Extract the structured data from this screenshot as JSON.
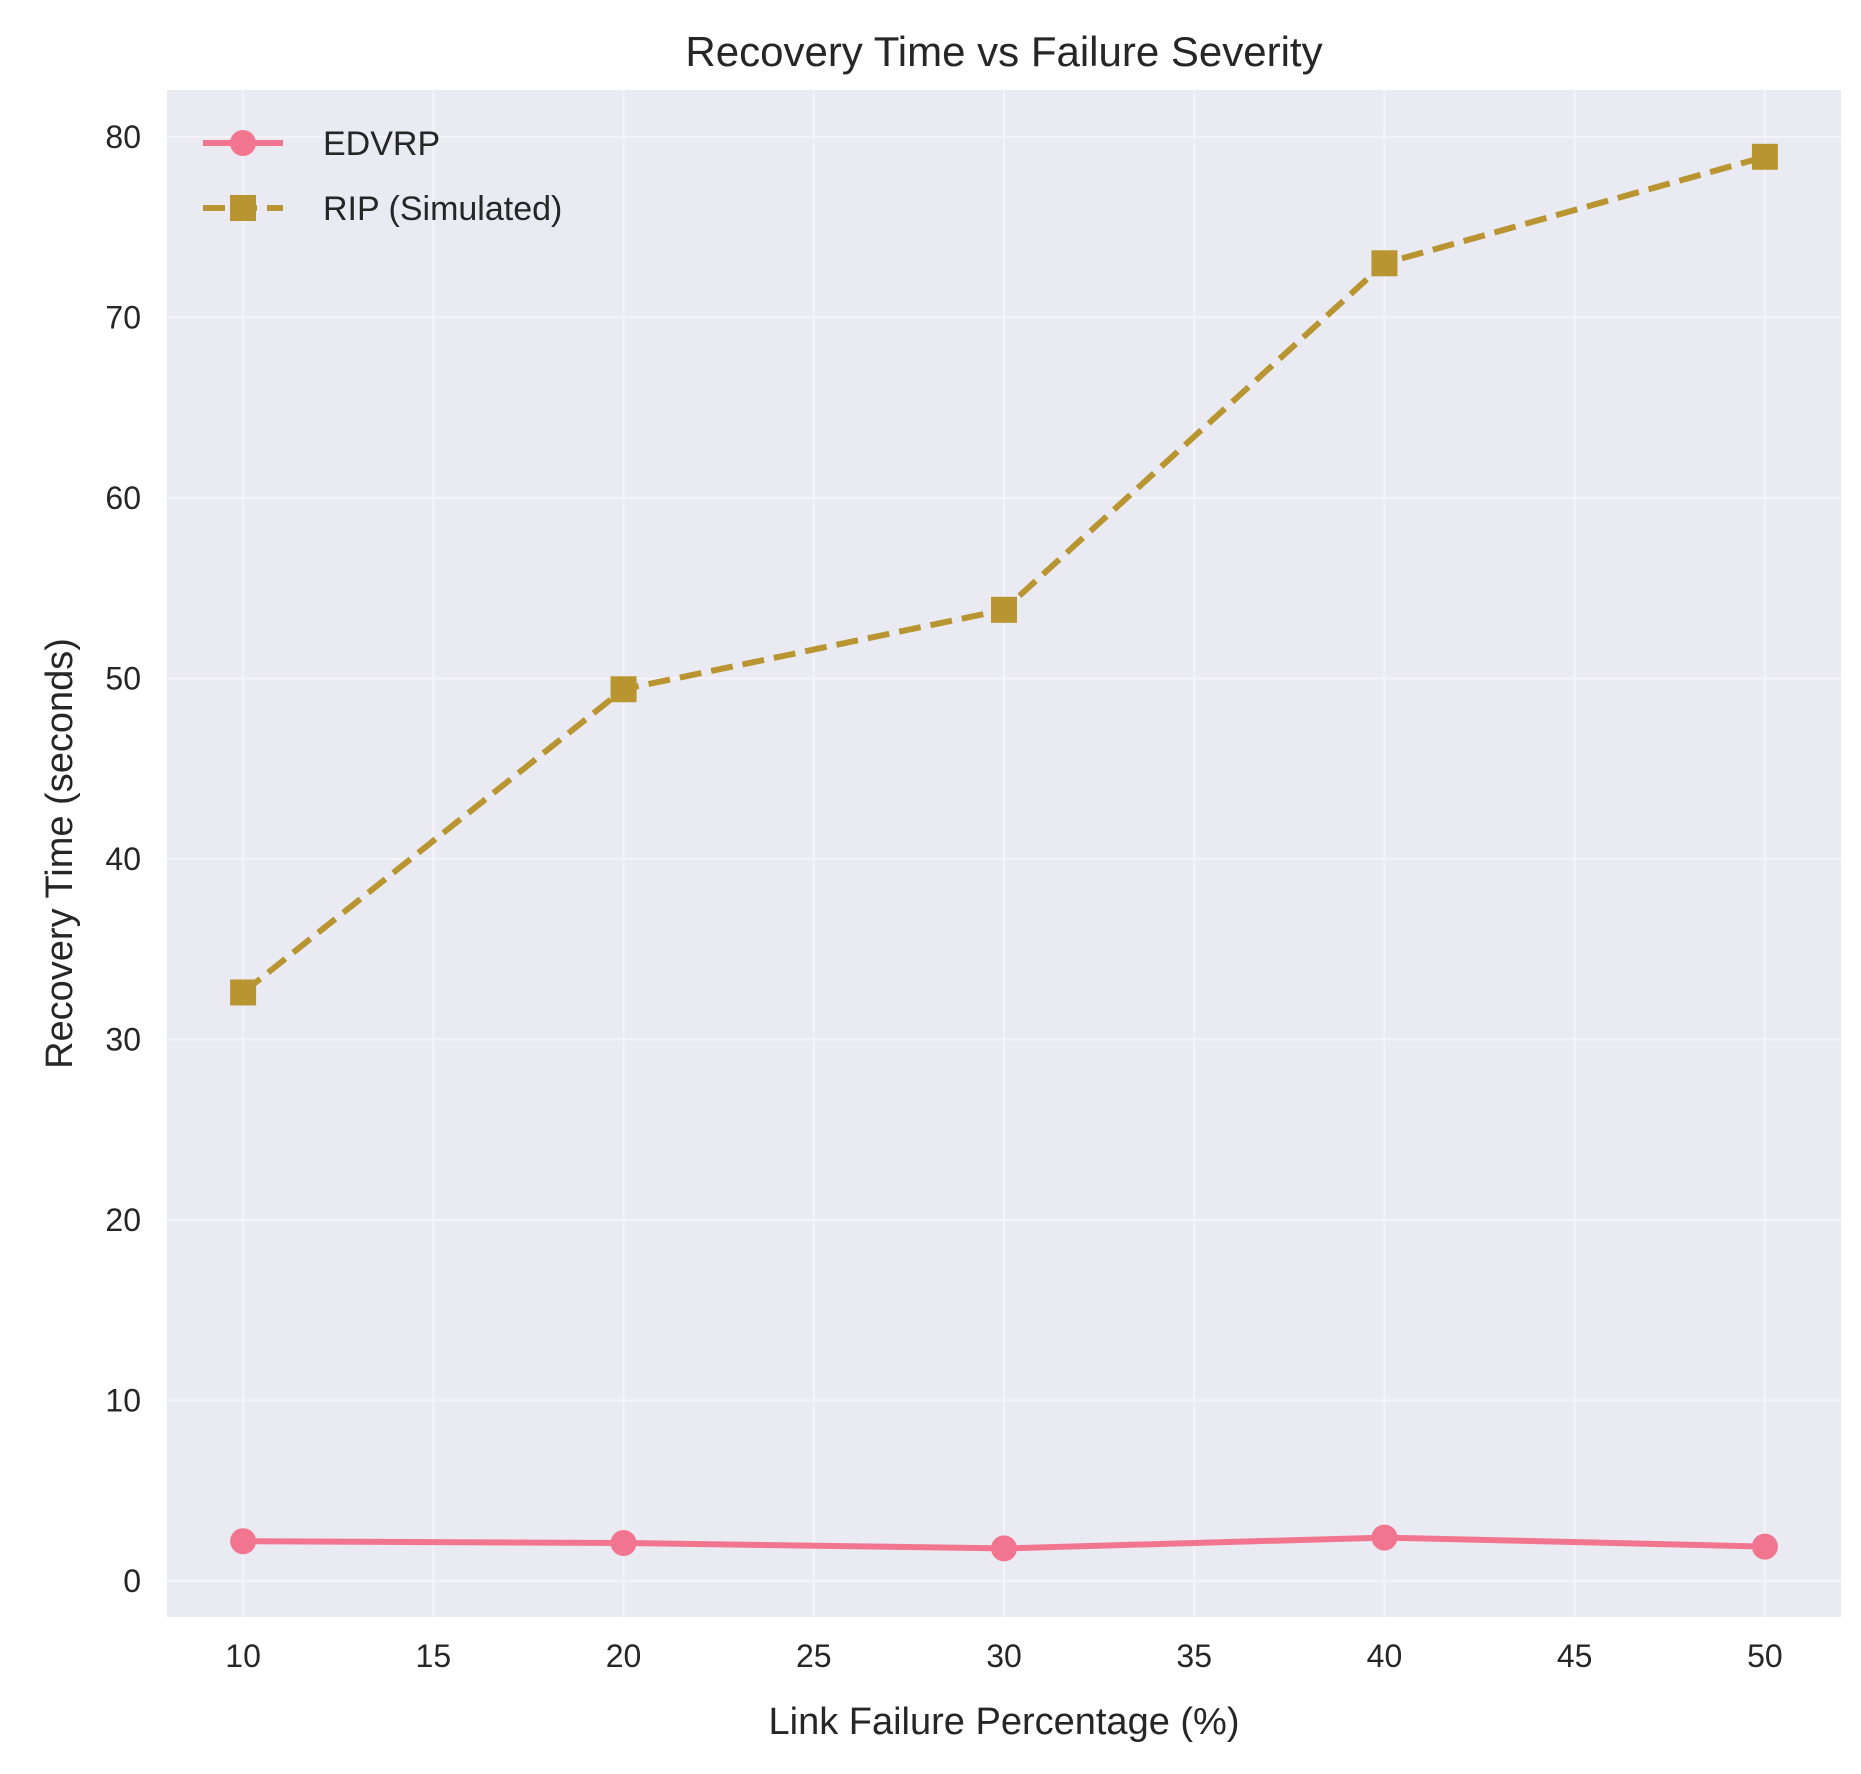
{
  "chart_data": {
    "type": "line",
    "title": "Recovery Time vs Failure Severity",
    "xlabel": "Link Failure Percentage (%)",
    "ylabel": "Recovery Time (seconds)",
    "xlim": [
      8,
      52
    ],
    "ylim": [
      -2,
      82.6
    ],
    "xticks": [
      10,
      15,
      20,
      25,
      30,
      35,
      40,
      45,
      50
    ],
    "yticks": [
      0,
      10,
      20,
      30,
      40,
      50,
      60,
      70,
      80
    ],
    "grid": true,
    "legend_position": "top-left",
    "x": [
      10,
      20,
      30,
      40,
      50
    ],
    "series": [
      {
        "name": "EDVRP",
        "values": [
          2.2,
          2.1,
          1.8,
          2.4,
          1.9
        ],
        "color": "#f27590",
        "line_style": "solid",
        "marker": "circle"
      },
      {
        "name": "RIP (Simulated)",
        "values": [
          32.6,
          49.4,
          53.8,
          73.0,
          78.9
        ],
        "color": "#b99531",
        "line_style": "dashed",
        "marker": "square"
      }
    ],
    "colors": {
      "plot_background": "#eaeaf2",
      "grid": "#f4f4f8"
    }
  }
}
